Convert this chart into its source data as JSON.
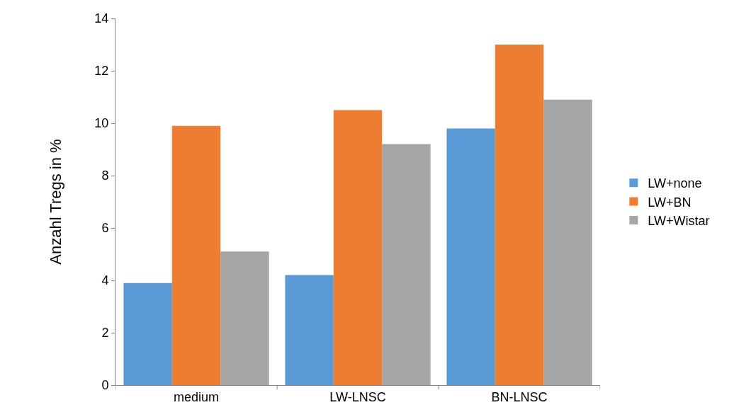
{
  "chart_data": {
    "type": "bar",
    "ylabel": "Anzahl Tregs in %",
    "categories": [
      "medium",
      "LW-LNSC",
      "BN-LNSC"
    ],
    "series": [
      {
        "name": "LW+none",
        "color": "#5b9bd5",
        "values": [
          3.9,
          4.2,
          9.8
        ]
      },
      {
        "name": "LW+BN",
        "color": "#ed7d31",
        "values": [
          9.9,
          10.5,
          13.0
        ]
      },
      {
        "name": "LW+Wistar",
        "color": "#a5a5a5",
        "values": [
          5.1,
          9.2,
          10.9
        ]
      }
    ],
    "ylim": [
      0,
      14
    ],
    "yticks": [
      0,
      2,
      4,
      6,
      8,
      10,
      12,
      14
    ],
    "grid": false,
    "legend": "right"
  }
}
